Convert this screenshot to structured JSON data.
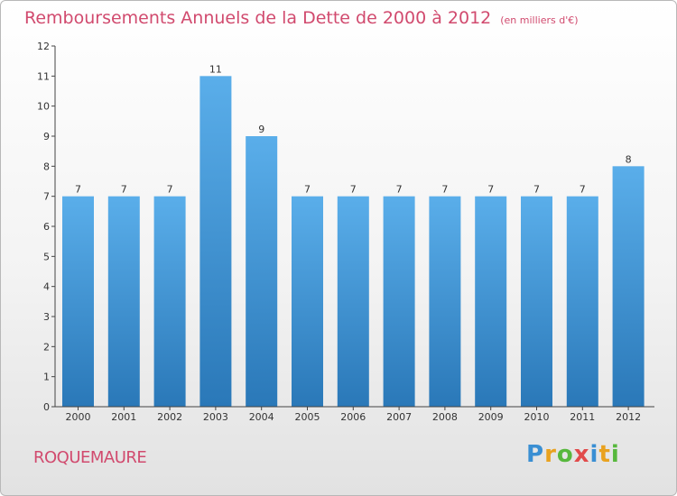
{
  "header": {
    "title": "Remboursements Annuels de la Dette de 2000 à 2012",
    "unit": "(en milliers d'€)"
  },
  "footer": {
    "commune": "ROQUEMAURE",
    "logo_letters": [
      "P",
      "r",
      "o",
      "x",
      "i",
      "t",
      "i"
    ]
  },
  "chart_data": {
    "type": "bar",
    "title": "Remboursements Annuels de la Dette de 2000 à 2012",
    "subtitle": "(en milliers d'€)",
    "xlabel": "",
    "ylabel": "",
    "categories": [
      "2000",
      "2001",
      "2002",
      "2003",
      "2004",
      "2005",
      "2006",
      "2007",
      "2008",
      "2009",
      "2010",
      "2011",
      "2012"
    ],
    "values": [
      7,
      7,
      7,
      11,
      9,
      7,
      7,
      7,
      7,
      7,
      7,
      7,
      8
    ],
    "data_labels": [
      "7",
      "7",
      "7",
      "11",
      "9",
      "7",
      "7",
      "7",
      "7",
      "7",
      "7",
      "7",
      "8"
    ],
    "ylim": [
      0,
      12
    ],
    "yticks": [
      0,
      1,
      2,
      3,
      4,
      5,
      6,
      7,
      8,
      9,
      10,
      11,
      12
    ],
    "grid": false,
    "legend": "none",
    "colors": {
      "bar_top": "#5aaeea",
      "bar_bottom": "#2a78b8",
      "text": "#333333"
    }
  }
}
